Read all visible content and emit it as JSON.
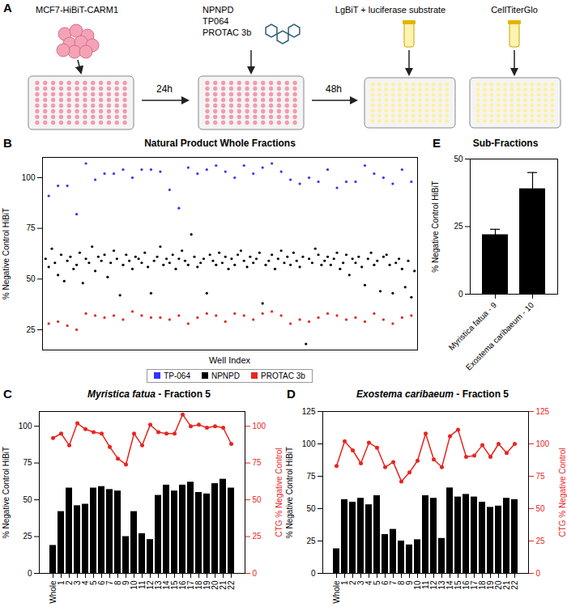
{
  "diagram": {
    "panel": "A",
    "cells": "MCF7-HiBiT-CARM1",
    "compounds": [
      "NPNPD",
      "TP064",
      "PROTAC 3b"
    ],
    "steps": [
      "24h",
      "48h"
    ],
    "reagents": [
      "LgBiT + luciferase substrate",
      "CellTiterGlo"
    ]
  },
  "chart_data": [
    {
      "panel": "B",
      "type": "scatter",
      "title": "Natural Product Whole Fractions",
      "x_label": "Well Index",
      "y_label": "% Negative Control HiBiT",
      "xlim": [
        0,
        121
      ],
      "ylim": [
        15,
        110
      ],
      "yticks": [
        25,
        50,
        75,
        100
      ],
      "tick_labels": "y",
      "grid": false,
      "legend": "bottom",
      "series": [
        {
          "name": "TP-064",
          "color": "#3333ff",
          "marker": "circle",
          "x": [
            2,
            5,
            8,
            11,
            14,
            17,
            20,
            23,
            26,
            29,
            32,
            35,
            38,
            41,
            44,
            47,
            50,
            53,
            56,
            59,
            62,
            65,
            68,
            71,
            74,
            77,
            80,
            83,
            86,
            89,
            92,
            95,
            98,
            101,
            104,
            107,
            110,
            113,
            116,
            119
          ],
          "values": [
            91,
            96,
            96,
            82,
            107,
            99,
            102,
            102,
            104,
            100,
            104,
            104,
            103,
            94,
            85,
            105,
            102,
            104,
            106,
            103,
            100,
            106,
            102,
            105,
            107,
            103,
            99,
            97,
            100,
            98,
            104,
            95,
            98,
            98,
            106,
            102,
            100,
            97,
            104,
            98
          ]
        },
        {
          "name": "NPNPD",
          "color": "#000000",
          "marker": "circle",
          "x": [
            1,
            2,
            3,
            4,
            5,
            6,
            7,
            8,
            9,
            10,
            11,
            12,
            13,
            14,
            15,
            16,
            17,
            18,
            19,
            20,
            21,
            22,
            23,
            24,
            25,
            26,
            27,
            28,
            29,
            30,
            31,
            32,
            33,
            34,
            35,
            36,
            37,
            38,
            39,
            40,
            41,
            42,
            43,
            44,
            45,
            46,
            47,
            48,
            49,
            50,
            51,
            52,
            53,
            54,
            55,
            56,
            57,
            58,
            59,
            60,
            61,
            62,
            63,
            64,
            65,
            66,
            67,
            68,
            69,
            70,
            71,
            72,
            73,
            74,
            75,
            76,
            77,
            78,
            79,
            80,
            81,
            82,
            83,
            84,
            85,
            86,
            87,
            88,
            89,
            90,
            91,
            92,
            93,
            94,
            95,
            96,
            97,
            98,
            99,
            100,
            101,
            102,
            103,
            104,
            105,
            106,
            107,
            108,
            109,
            110,
            111,
            112,
            113,
            114,
            115,
            116,
            117,
            118,
            119,
            120
          ],
          "values": [
            60,
            56,
            65,
            58,
            52,
            62,
            49,
            59,
            61,
            55,
            57,
            63,
            48,
            60,
            58,
            66,
            54,
            61,
            59,
            62,
            51,
            58,
            64,
            60,
            42,
            57,
            62,
            59,
            55,
            61,
            60,
            58,
            63,
            56,
            43,
            59,
            61,
            66,
            57,
            60,
            58,
            62,
            55,
            60,
            64,
            59,
            57,
            72,
            61,
            56,
            58,
            60,
            43,
            62,
            59,
            57,
            63,
            58,
            61,
            55,
            60,
            57,
            62,
            64,
            59,
            56,
            61,
            58,
            60,
            63,
            38,
            57,
            59,
            62,
            55,
            60,
            64,
            58,
            61,
            57,
            63,
            59,
            56,
            61,
            18,
            60,
            58,
            65,
            62,
            57,
            59,
            61,
            57,
            60,
            63,
            55,
            58,
            62,
            52,
            60,
            58,
            61,
            56,
            47,
            60,
            63,
            57,
            59,
            44,
            61,
            62,
            57,
            43,
            58,
            60,
            55,
            46,
            59,
            41,
            54
          ]
        },
        {
          "name": "PROTAC 3b",
          "color": "#e8251f",
          "marker": "circle",
          "x": [
            2,
            5,
            8,
            11,
            14,
            17,
            20,
            23,
            26,
            29,
            32,
            35,
            38,
            41,
            44,
            47,
            50,
            53,
            56,
            59,
            62,
            65,
            68,
            71,
            74,
            77,
            80,
            83,
            86,
            89,
            92,
            95,
            98,
            101,
            104,
            107,
            110,
            113,
            116,
            119
          ],
          "values": [
            28,
            29,
            27,
            25,
            33,
            32,
            31,
            32,
            30,
            34,
            32,
            31,
            31,
            30,
            32,
            28,
            31,
            33,
            32,
            29,
            33,
            32,
            30,
            33,
            34,
            32,
            28,
            30,
            29,
            31,
            33,
            32,
            30,
            31,
            29,
            33,
            30,
            28,
            31,
            32
          ]
        }
      ]
    },
    {
      "panel": "C",
      "type": "bar",
      "title": "Myristica fatua - Fraction 5",
      "y_label": "% Negative Control HiBiT",
      "y2_label": "CTG % Negative Control",
      "categories": [
        "Whole",
        "1",
        "2",
        "3",
        "4",
        "5",
        "6",
        "7",
        "8",
        "9",
        "10",
        "11",
        "12",
        "13",
        "14",
        "15",
        "16",
        "17",
        "18",
        "19",
        "20",
        "21",
        "22"
      ],
      "ylim": [
        0,
        110
      ],
      "yticks": [
        0,
        25,
        50,
        75,
        100
      ],
      "y2lim": [
        0,
        110
      ],
      "y2ticks": [
        0,
        25,
        50,
        75,
        100
      ],
      "series": [
        {
          "type": "bar",
          "color": "#000000",
          "values": [
            19,
            42,
            58,
            46,
            47,
            58,
            59,
            57,
            56,
            25,
            42,
            27,
            23,
            53,
            60,
            56,
            60,
            62,
            55,
            54,
            61,
            64,
            58
          ]
        },
        {
          "type": "line",
          "axis": "y2",
          "color": "#e8251f",
          "marker": "circle",
          "values": [
            92,
            95,
            87,
            102,
            98,
            96,
            95,
            86,
            78,
            74,
            95,
            87,
            101,
            96,
            95,
            95,
            108,
            100,
            101,
            99,
            100,
            99,
            88
          ]
        }
      ]
    },
    {
      "panel": "D",
      "type": "bar",
      "title": "Exostema caribaeum - Fraction 5",
      "y_label": "% Negative Control HiBiT",
      "y2_label": "CTG % Negative Control",
      "categories": [
        "Whole",
        "1",
        "2",
        "3",
        "4",
        "5",
        "6",
        "7",
        "8",
        "9",
        "10",
        "11",
        "12",
        "13",
        "14",
        "15",
        "16",
        "17",
        "18",
        "19",
        "20",
        "21",
        "22"
      ],
      "ylim": [
        0,
        125
      ],
      "yticks": [
        0,
        25,
        50,
        75,
        100,
        125
      ],
      "y2lim": [
        0,
        125
      ],
      "y2ticks": [
        0,
        25,
        50,
        75,
        100,
        125
      ],
      "series": [
        {
          "type": "bar",
          "color": "#000000",
          "values": [
            19,
            57,
            55,
            58,
            53,
            60,
            30,
            34,
            25,
            22,
            26,
            60,
            58,
            27,
            66,
            59,
            61,
            59,
            55,
            51,
            52,
            58,
            57
          ]
        },
        {
          "type": "line",
          "axis": "y2",
          "color": "#e8251f",
          "marker": "circle",
          "values": [
            83,
            102,
            95,
            85,
            101,
            97,
            82,
            86,
            71,
            78,
            87,
            108,
            88,
            82,
            106,
            111,
            90,
            91,
            99,
            90,
            100,
            93,
            100
          ]
        }
      ]
    },
    {
      "panel": "E",
      "type": "bar",
      "title": "Sub-Fractions",
      "y_label": "% Negative Control HiBiT",
      "categories": [
        "Myristica fatua - 9",
        "Exostema caribaeum - 10"
      ],
      "values": [
        22,
        39
      ],
      "errors": [
        2,
        6
      ],
      "color": "#000000",
      "ylim": [
        0,
        50
      ],
      "yticks": [
        0,
        25,
        50
      ]
    }
  ]
}
